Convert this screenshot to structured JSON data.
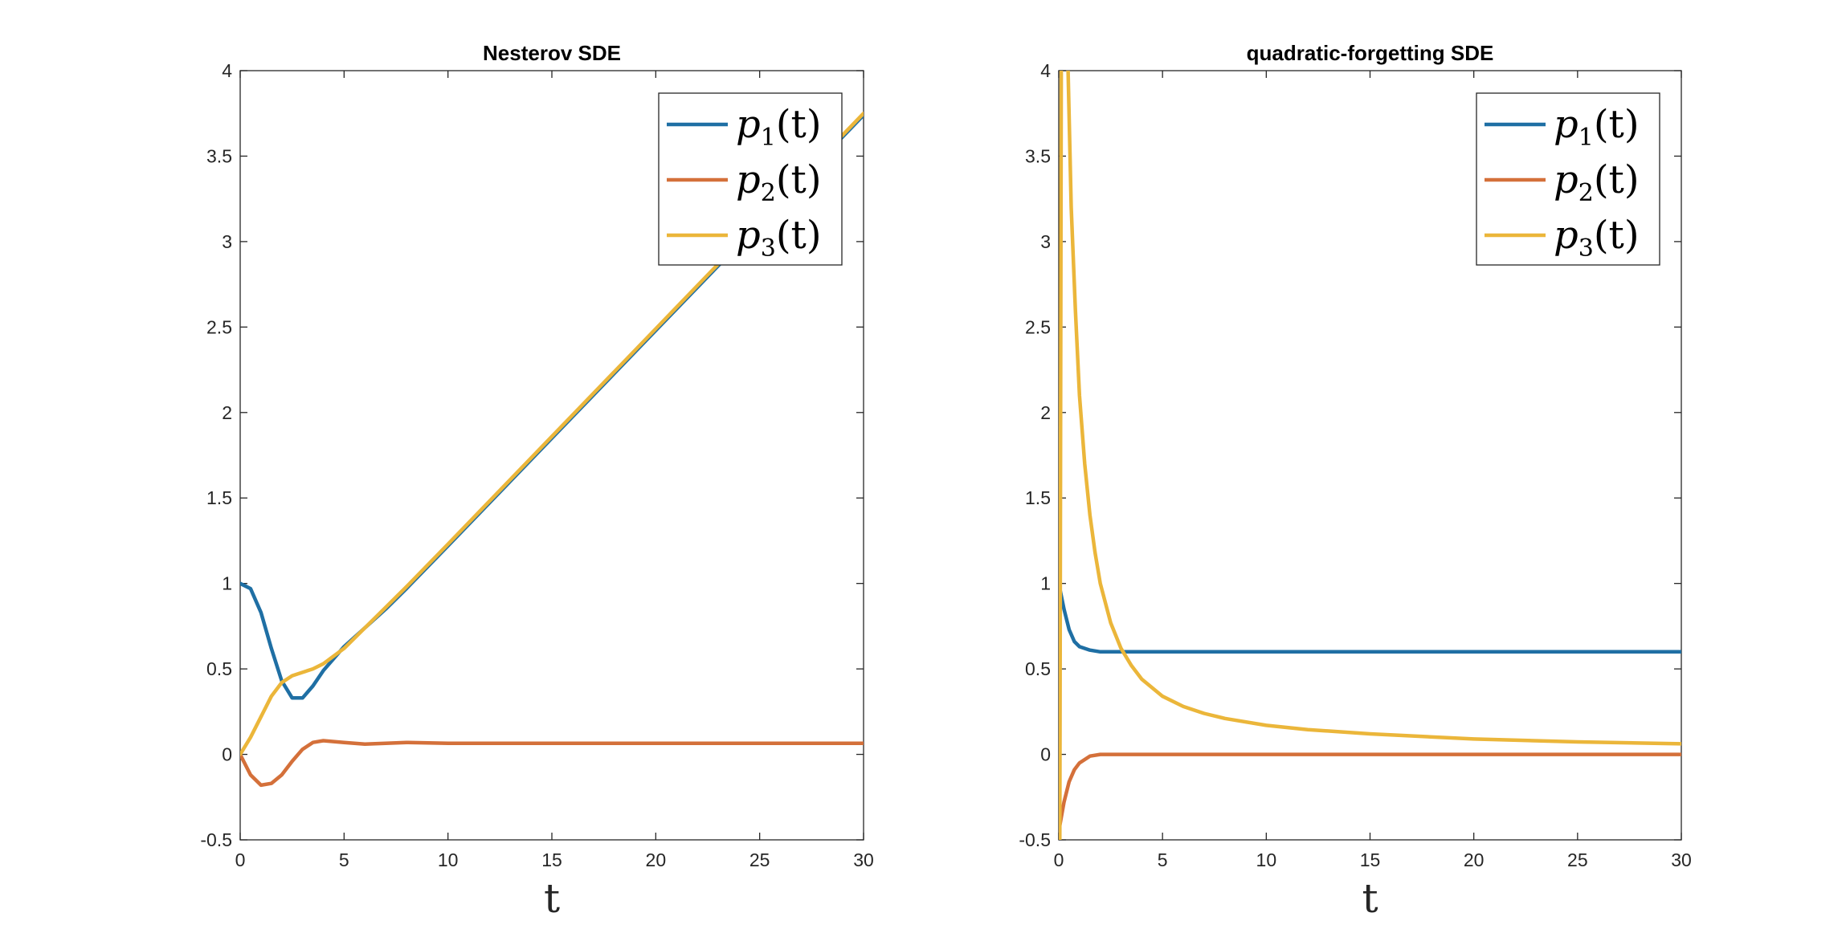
{
  "chart_data": [
    {
      "type": "line",
      "title": "Nesterov SDE",
      "xlabel": "t",
      "ylabel": "",
      "xlim": [
        0,
        30
      ],
      "ylim": [
        -0.5,
        4
      ],
      "xticks": [
        "0",
        "5",
        "10",
        "15",
        "20",
        "25",
        "30"
      ],
      "yticks": [
        "-0.5",
        "0",
        "0.5",
        "1",
        "1.5",
        "2",
        "2.5",
        "3",
        "3.5",
        "4"
      ],
      "legend_position": "top-right",
      "series": [
        {
          "name": "p1(t)",
          "color": "#1f6fa4",
          "x": [
            0,
            0.5,
            1,
            1.5,
            2,
            2.5,
            3,
            3.5,
            4,
            5,
            6,
            7,
            8,
            10,
            15,
            20,
            25,
            30
          ],
          "y": [
            1.0,
            0.97,
            0.83,
            0.62,
            0.43,
            0.33,
            0.33,
            0.4,
            0.49,
            0.63,
            0.74,
            0.85,
            0.97,
            1.22,
            1.85,
            2.48,
            3.11,
            3.74
          ]
        },
        {
          "name": "p2(t)",
          "color": "#d4703a",
          "x": [
            0,
            0.5,
            1,
            1.5,
            2,
            2.5,
            3,
            3.5,
            4,
            5,
            6,
            7,
            8,
            10,
            15,
            20,
            30
          ],
          "y": [
            0.0,
            -0.12,
            -0.18,
            -0.17,
            -0.12,
            -0.04,
            0.03,
            0.07,
            0.08,
            0.07,
            0.06,
            0.065,
            0.07,
            0.065,
            0.065,
            0.065,
            0.065
          ]
        },
        {
          "name": "p3(t)",
          "color": "#ebb63a",
          "x": [
            0,
            0.5,
            1,
            1.5,
            2,
            2.5,
            3,
            3.5,
            4,
            5,
            6,
            7,
            8,
            10,
            15,
            20,
            25,
            30
          ],
          "y": [
            0.0,
            0.1,
            0.22,
            0.34,
            0.42,
            0.46,
            0.48,
            0.5,
            0.53,
            0.62,
            0.74,
            0.86,
            0.98,
            1.23,
            1.86,
            2.49,
            3.12,
            3.75
          ]
        }
      ]
    },
    {
      "type": "line",
      "title": "quadratic-forgetting SDE",
      "xlabel": "t",
      "ylabel": "",
      "xlim": [
        0,
        30
      ],
      "ylim": [
        -0.5,
        4
      ],
      "xticks": [
        "0",
        "5",
        "10",
        "15",
        "20",
        "25",
        "30"
      ],
      "yticks": [
        "-0.5",
        "0",
        "0.5",
        "1",
        "1.5",
        "2",
        "2.5",
        "3",
        "3.5",
        "4"
      ],
      "legend_position": "top-right",
      "series": [
        {
          "name": "p1(t)",
          "color": "#1f6fa4",
          "x": [
            0,
            0.25,
            0.5,
            0.75,
            1,
            1.5,
            2,
            2.5,
            3,
            5,
            10,
            20,
            30
          ],
          "y": [
            1.0,
            0.85,
            0.73,
            0.66,
            0.63,
            0.61,
            0.6,
            0.6,
            0.6,
            0.6,
            0.6,
            0.6,
            0.6
          ]
        },
        {
          "name": "p2(t)",
          "color": "#d4703a",
          "x": [
            0,
            0.25,
            0.5,
            0.75,
            1,
            1.5,
            2,
            2.5,
            3,
            5,
            10,
            20,
            30
          ],
          "y": [
            -0.45,
            -0.28,
            -0.16,
            -0.09,
            -0.05,
            -0.01,
            0.0,
            0.0,
            0.0,
            0.0,
            0.0,
            0.0,
            0.0
          ]
        },
        {
          "name": "p3(t)",
          "color": "#ebb63a",
          "x": [
            0.05,
            0.08,
            0.12,
            0.2,
            0.3,
            0.45,
            0.6,
            0.8,
            1,
            1.25,
            1.5,
            1.75,
            2,
            2.5,
            3,
            3.5,
            4,
            5,
            6,
            7,
            8,
            10,
            12,
            15,
            20,
            25,
            30
          ],
          "y": [
            -0.5,
            1.5,
            4.0,
            5.0,
            5.0,
            4.0,
            3.2,
            2.6,
            2.1,
            1.7,
            1.4,
            1.18,
            1.0,
            0.77,
            0.62,
            0.52,
            0.44,
            0.34,
            0.28,
            0.24,
            0.21,
            0.17,
            0.145,
            0.12,
            0.09,
            0.073,
            0.062
          ]
        }
      ]
    }
  ]
}
